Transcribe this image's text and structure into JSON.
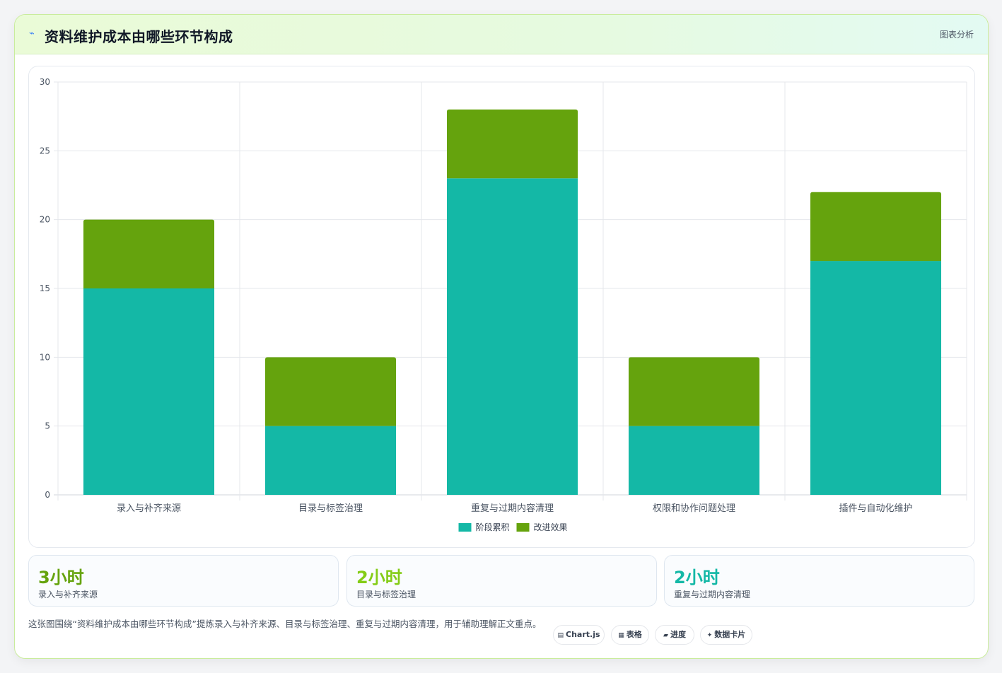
{
  "header": {
    "icon": "bolt-icon",
    "title": "资料维护成本由哪些环节构成",
    "tag": "图表分析"
  },
  "chart_data": {
    "type": "bar",
    "stacked": true,
    "categories": [
      "录入与补齐来源",
      "目录与标签治理",
      "重复与过期内容清理",
      "权限和协作问题处理",
      "插件与自动化维护"
    ],
    "series": [
      {
        "name": "阶段累积",
        "values": [
          15,
          5,
          23,
          5,
          17
        ],
        "color": "#14b8a6"
      },
      {
        "name": "改进效果",
        "values": [
          5,
          5,
          5,
          5,
          5
        ],
        "color": "#65a30d"
      }
    ],
    "ylim": [
      0,
      30
    ],
    "yticks": [
      0,
      5,
      10,
      15,
      20,
      25,
      30
    ],
    "grid": true,
    "legend": "bottom"
  },
  "stats": [
    {
      "value": "3小时",
      "label": "录入与补齐来源",
      "color": "#65a30d"
    },
    {
      "value": "2小时",
      "label": "目录与标签治理",
      "color": "#84cc16"
    },
    {
      "value": "2小时",
      "label": "重复与过期内容清理",
      "color": "#14b8a6"
    }
  ],
  "footer": {
    "description": "这张图围绕“资料维护成本由哪些环节构成”提炼录入与补齐来源、目录与标签治理、重复与过期内容清理，用于辅助理解正文重点。",
    "chips": [
      {
        "icon": "▤",
        "label": "Chart.js"
      },
      {
        "icon": "▦",
        "label": "表格"
      },
      {
        "icon": "▰",
        "label": "进度"
      },
      {
        "icon": "✦",
        "label": "数据卡片"
      }
    ]
  }
}
